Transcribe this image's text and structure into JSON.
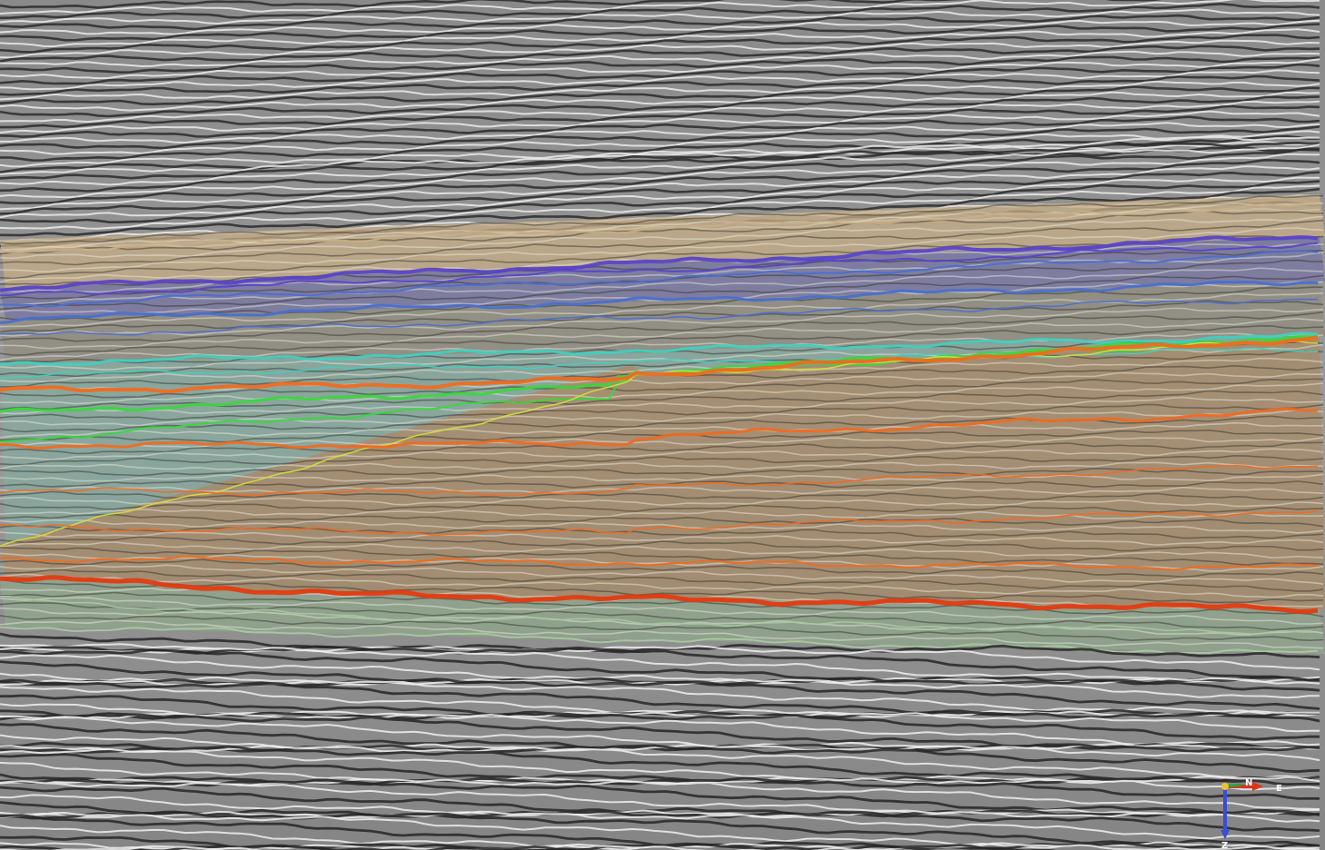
{
  "viewer": {
    "type": "seismic-section-3d-view"
  },
  "orientation_gizmo": {
    "north_label": "N",
    "east_label": "E",
    "z_label": "Z",
    "colors": {
      "north_axis": "#2ea043",
      "east_axis": "#d9361b",
      "z_axis": "#3b4cd6",
      "origin": "#e8c33a"
    }
  },
  "horizon_colors": {
    "upper_tan": "#c7ae86",
    "purple": "#5a45c8",
    "blue": "#4a6fd0",
    "cyan": "#3fd0c0",
    "green": "#38d83a",
    "yellow": "#d6dc3a",
    "orange": "#f06a20",
    "red": "#e43a10",
    "pale_green": "#a8c8a0"
  }
}
